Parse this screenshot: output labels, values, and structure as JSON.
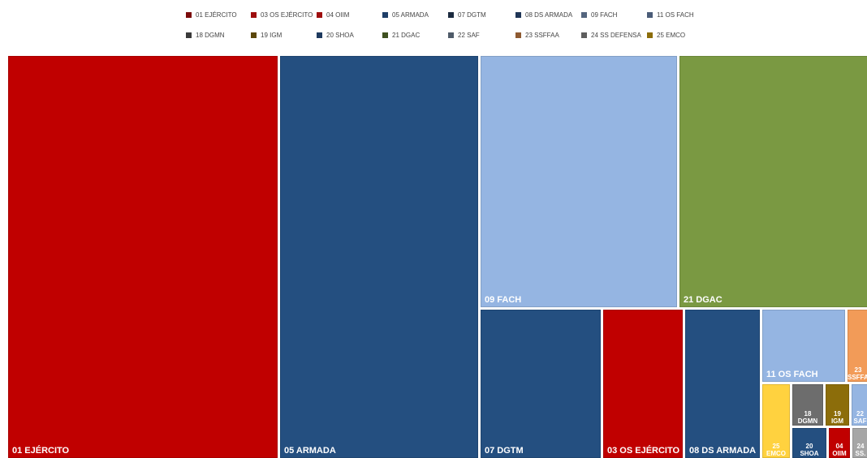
{
  "chart_data": {
    "type": "treemap",
    "title": "",
    "legend_position": "top",
    "items": [
      {
        "id": "01",
        "label": "01 EJÉRCITO",
        "color": "#C00000",
        "value": 1000
      },
      {
        "id": "03",
        "label": "03 OS EJÉRCITO",
        "color": "#C00000",
        "value": 185
      },
      {
        "id": "04",
        "label": "04 OIIM",
        "color": "#C00000",
        "value": 10
      },
      {
        "id": "05",
        "label": "05 ARMADA",
        "color": "#244F80",
        "value": 718
      },
      {
        "id": "07",
        "label": "07 DGTM",
        "color": "#244F80",
        "value": 176
      },
      {
        "id": "08",
        "label": "08 DS ARMADA",
        "color": "#244F80",
        "value": 170
      },
      {
        "id": "09",
        "label": "09 FACH",
        "color": "#95B5E2",
        "value": 423
      },
      {
        "id": "11",
        "label": "11 OS FACH",
        "color": "#95B5E2",
        "value": 44
      },
      {
        "id": "18",
        "label": "18 DGMN",
        "color": "#6D6D6D",
        "value": 12
      },
      {
        "id": "19",
        "label": "19 IGM",
        "color": "#8C6D0A",
        "value": 9
      },
      {
        "id": "20",
        "label": "20 SHOA",
        "color": "#244F80",
        "value": 11
      },
      {
        "id": "21",
        "label": "21 DGAC",
        "color": "#7A9942",
        "value": 423
      },
      {
        "id": "22",
        "label": "22 SAF",
        "color": "#95B5E2",
        "value": 7
      },
      {
        "id": "23",
        "label": "23 SSFFAA",
        "color": "#F29B58",
        "value": 12
      },
      {
        "id": "24",
        "label": "24 SS DEFENSA",
        "color": "#A6A6A6",
        "value": 5
      },
      {
        "id": "25",
        "label": "25 EMCO",
        "color": "#FFD23F",
        "value": 16
      }
    ],
    "legend": [
      {
        "label": "01 EJÉRCITO",
        "color": "#7B0B0B"
      },
      {
        "label": "03 OS EJÉRCITO",
        "color": "#9E0E0E"
      },
      {
        "label": "04 OIIM",
        "color": "#9E0E0E"
      },
      {
        "label": "05 ARMADA",
        "color": "#1E3E68"
      },
      {
        "label": "07 DGTM",
        "color": "#1B2A3F"
      },
      {
        "label": "08 DS ARMADA",
        "color": "#1F3556"
      },
      {
        "label": "09 FACH",
        "color": "#54657E"
      },
      {
        "label": "11 OS FACH",
        "color": "#4B5C78"
      },
      {
        "label": "18 DGMN",
        "color": "#3A3A3A"
      },
      {
        "label": "19 IGM",
        "color": "#5B470A"
      },
      {
        "label": "20 SHOA",
        "color": "#1E3A5F"
      },
      {
        "label": "21 DGAC",
        "color": "#3F5020"
      },
      {
        "label": "22 SAF",
        "color": "#4F5B69"
      },
      {
        "label": "23 SSFFAA",
        "color": "#8E5A31"
      },
      {
        "label": "24 SS DEFENSA",
        "color": "#5E5E5E"
      },
      {
        "label": "25 EMCO",
        "color": "#8C6D0A"
      }
    ],
    "tile_labels": {
      "01": [
        "01 EJÉRCITO"
      ],
      "03": [
        "03 OS EJÉRCITO"
      ],
      "04": [
        "04",
        "OIIM"
      ],
      "05": [
        "05 ARMADA"
      ],
      "07": [
        "07 DGTM"
      ],
      "08": [
        "08 DS ARMADA"
      ],
      "09": [
        "09 FACH"
      ],
      "11": [
        "11 OS FACH"
      ],
      "18": [
        "18",
        "DGMN"
      ],
      "19": [
        "19",
        "IGM"
      ],
      "20": [
        "20",
        "SHOA"
      ],
      "21": [
        "21 DGAC"
      ],
      "22": [
        "22",
        "SAF"
      ],
      "23": [
        "23",
        "SSFFAA"
      ],
      "24": [
        "24",
        "SS."
      ],
      "25": [
        "25",
        "EMCO"
      ]
    }
  }
}
